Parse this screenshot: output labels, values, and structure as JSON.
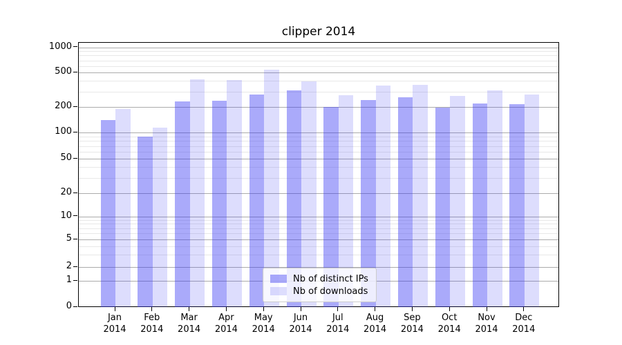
{
  "title": "clipper 2014",
  "chart_data": {
    "type": "bar",
    "title": "clipper 2014",
    "categories": [
      "Jan",
      "Feb",
      "Mar",
      "Apr",
      "May",
      "Jun",
      "Jul",
      "Aug",
      "Sep",
      "Oct",
      "Nov",
      "Dec"
    ],
    "year_label": "2014",
    "series": [
      {
        "name": "Nb of distinct IPs",
        "color": "#a9a9f5",
        "css_color": "rgba(53,53,243,0.42)",
        "values": [
          140,
          90,
          230,
          235,
          280,
          310,
          200,
          240,
          260,
          195,
          218,
          215
        ]
      },
      {
        "name": "Nb of downloads",
        "color": "#dcdcfa",
        "css_color": "rgba(53,53,243,0.17)",
        "values": [
          190,
          113,
          420,
          410,
          540,
          398,
          275,
          352,
          360,
          267,
          313,
          277
        ]
      }
    ],
    "y_axis": {
      "scale": "symlog",
      "ticks": [
        0,
        1,
        2,
        5,
        10,
        20,
        50,
        100,
        200,
        500,
        1000
      ],
      "minor_ticks": [
        3,
        4,
        6,
        7,
        8,
        9,
        30,
        40,
        60,
        70,
        80,
        90,
        300,
        400,
        600,
        700,
        800,
        900
      ],
      "ylim": [
        0,
        1100
      ]
    },
    "grid": true,
    "legend_position": "lower center"
  }
}
